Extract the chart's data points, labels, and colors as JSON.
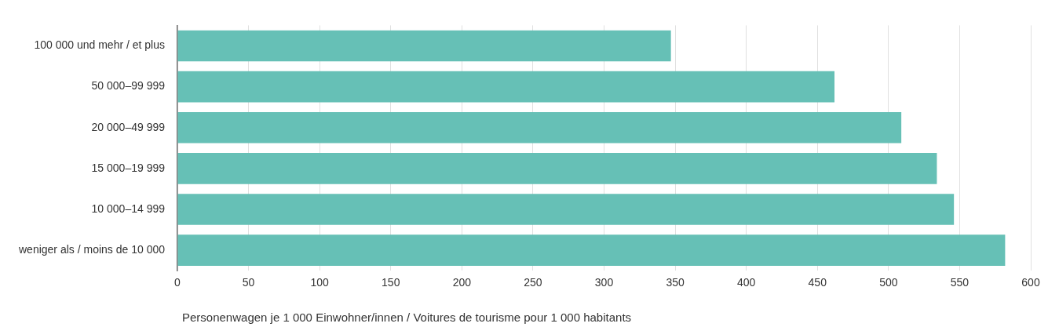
{
  "chart_data": {
    "type": "bar",
    "orientation": "horizontal",
    "categories": [
      "100 000 und mehr / et plus",
      "50 000–99 999",
      "20 000–49 999",
      "15 000–19 999",
      "10 000–14 999",
      "weniger als / moins de 10 000"
    ],
    "values": [
      347,
      462,
      509,
      534,
      546,
      582
    ],
    "color": "#66c0b6",
    "xlabel": "Personenwagen je 1 000 Einwohner/innen / Voitures de tourisme pour 1 000 habitants",
    "xlim": [
      0,
      600
    ],
    "xticks": [
      0,
      50,
      100,
      150,
      200,
      250,
      300,
      350,
      400,
      450,
      500,
      550,
      600
    ],
    "grid": "x",
    "legend": false
  }
}
